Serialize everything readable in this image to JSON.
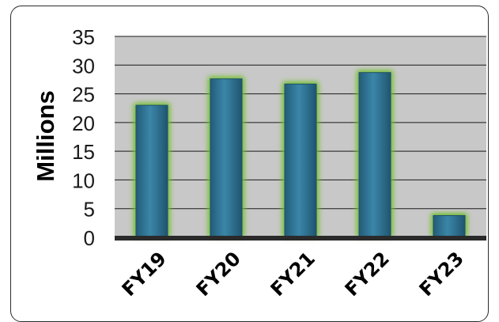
{
  "chart_data": {
    "type": "bar",
    "title": "",
    "xlabel": "",
    "ylabel": "Millions",
    "categories": [
      "FY19",
      "FY20",
      "FY21",
      "FY22",
      "FY23"
    ],
    "values": [
      23,
      27.6,
      26.7,
      28.7,
      3.8
    ],
    "ylim": [
      0,
      35
    ],
    "yticks": [
      "0",
      "5",
      "10",
      "15",
      "20",
      "25",
      "30",
      "35"
    ],
    "grid": true,
    "legend": "none",
    "colors": {
      "bar_fill": "#2d7090",
      "bar_highlight": "#4d97b6",
      "bar_glow": "#6fbf2c",
      "plot_background": "#c8c8c8",
      "axis_color": "#1a1a1a"
    }
  }
}
